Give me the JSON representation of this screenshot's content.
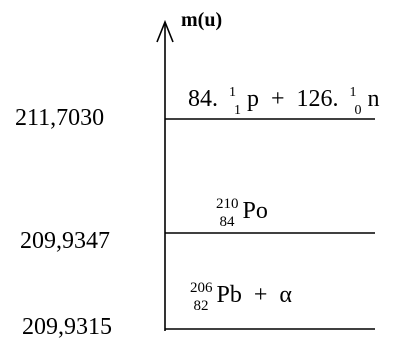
{
  "axis": {
    "label": "m(u)"
  },
  "levels": [
    {
      "value_label": "211,7030",
      "species": {
        "coef_p": "84.",
        "p_mass": "1",
        "p_charge": "1",
        "p_symbol": "p",
        "plus": "+",
        "coef_n": "126.",
        "n_mass": "1",
        "n_charge": "0",
        "n_symbol": "n"
      }
    },
    {
      "value_label": "209,9347",
      "species": {
        "mass": "210",
        "charge": "84",
        "symbol": "Po"
      }
    },
    {
      "value_label": "209,9315",
      "species": {
        "mass": "206",
        "charge": "82",
        "symbol": "Pb",
        "plus": "+",
        "alpha": "α"
      }
    }
  ]
}
